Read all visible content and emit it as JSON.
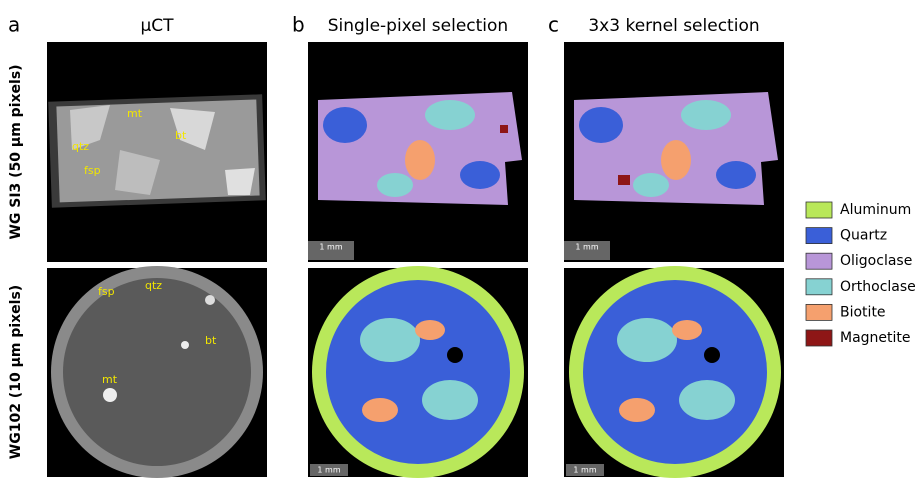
{
  "panels": [
    {
      "letter": "a",
      "title": "μCT"
    },
    {
      "letter": "b",
      "title": "Single-pixel selection"
    },
    {
      "letter": "c",
      "title": "3x3 kernel selection"
    }
  ],
  "rows": [
    {
      "label": "WG SI3 (50 μm pixels)"
    },
    {
      "label": "WG102 (10 μm pixels)"
    }
  ],
  "annotations": {
    "top": [
      "mt",
      "qtz",
      "bt",
      "fsp"
    ],
    "bottom": [
      "fsp",
      "qtz",
      "bt",
      "mt"
    ]
  },
  "scale_bar": "1 mm",
  "legend": [
    {
      "name": "Aluminum",
      "color": "#b9e85a"
    },
    {
      "name": "Quartz",
      "color": "#3a5fd8"
    },
    {
      "name": "Oligoclase",
      "color": "#b896d8"
    },
    {
      "name": "Orthoclase",
      "color": "#86d2d2"
    },
    {
      "name": "Biotite",
      "color": "#f5a06e"
    },
    {
      "name": "Magnetite",
      "color": "#8e1616"
    }
  ]
}
